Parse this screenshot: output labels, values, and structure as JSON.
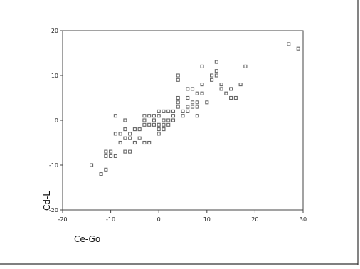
{
  "chart_data": {
    "type": "scatter",
    "xlabel": "Ce-Go",
    "ylabel": "Cd-L",
    "xlim": [
      -20,
      30
    ],
    "ylim": [
      -20,
      20
    ],
    "xticks": [
      -20,
      -10,
      0,
      10,
      20,
      30
    ],
    "yticks": [
      -20,
      -10,
      0,
      10,
      20
    ],
    "grid": false,
    "marker": "open-square",
    "colors": {
      "marker": "#666666",
      "axis": "#444444",
      "frame": "#333333"
    },
    "points": [
      [
        -14,
        -10
      ],
      [
        -12,
        -12
      ],
      [
        -11,
        -11
      ],
      [
        -11,
        -8
      ],
      [
        -11,
        -7
      ],
      [
        -10,
        -7
      ],
      [
        -10,
        -8
      ],
      [
        -9,
        -8
      ],
      [
        -9,
        -3
      ],
      [
        -8,
        -3
      ],
      [
        -8,
        -5
      ],
      [
        -7,
        -7
      ],
      [
        -6,
        -7
      ],
      [
        -9,
        1
      ],
      [
        -7,
        -2
      ],
      [
        -7,
        -4
      ],
      [
        -6,
        -4
      ],
      [
        -6,
        -3
      ],
      [
        -5,
        -5
      ],
      [
        -5,
        -2
      ],
      [
        -4,
        -4
      ],
      [
        -4,
        -2
      ],
      [
        -3,
        -5
      ],
      [
        -3,
        -1
      ],
      [
        -2,
        -1
      ],
      [
        -2,
        -5
      ],
      [
        -3,
        0
      ],
      [
        -3,
        1
      ],
      [
        -2,
        1
      ],
      [
        -1,
        1
      ],
      [
        -1,
        0
      ],
      [
        -1,
        -1
      ],
      [
        0,
        2
      ],
      [
        0,
        1
      ],
      [
        0,
        -1
      ],
      [
        0,
        -2
      ],
      [
        0,
        -3
      ],
      [
        1,
        2
      ],
      [
        1,
        0
      ],
      [
        1,
        -1
      ],
      [
        1,
        -2
      ],
      [
        2,
        2
      ],
      [
        2,
        0
      ],
      [
        2,
        -1
      ],
      [
        3,
        1
      ],
      [
        3,
        0
      ],
      [
        3,
        2
      ],
      [
        -7,
        0
      ],
      [
        4,
        10
      ],
      [
        4,
        9
      ],
      [
        4,
        5
      ],
      [
        4,
        4
      ],
      [
        4,
        3
      ],
      [
        5,
        2
      ],
      [
        5,
        1
      ],
      [
        6,
        3
      ],
      [
        6,
        5
      ],
      [
        6,
        7
      ],
      [
        6,
        2
      ],
      [
        7,
        4
      ],
      [
        7,
        3
      ],
      [
        7,
        7
      ],
      [
        8,
        4
      ],
      [
        8,
        6
      ],
      [
        8,
        1
      ],
      [
        8,
        3
      ],
      [
        9,
        8
      ],
      [
        9,
        6
      ],
      [
        9,
        12
      ],
      [
        10,
        4
      ],
      [
        11,
        10
      ],
      [
        11,
        9
      ],
      [
        12,
        13
      ],
      [
        12,
        11
      ],
      [
        12,
        10
      ],
      [
        13,
        7
      ],
      [
        13,
        8
      ],
      [
        14,
        6
      ],
      [
        15,
        5
      ],
      [
        15,
        7
      ],
      [
        16,
        5
      ],
      [
        17,
        8
      ],
      [
        18,
        12
      ],
      [
        27,
        17
      ],
      [
        29,
        16
      ]
    ]
  }
}
